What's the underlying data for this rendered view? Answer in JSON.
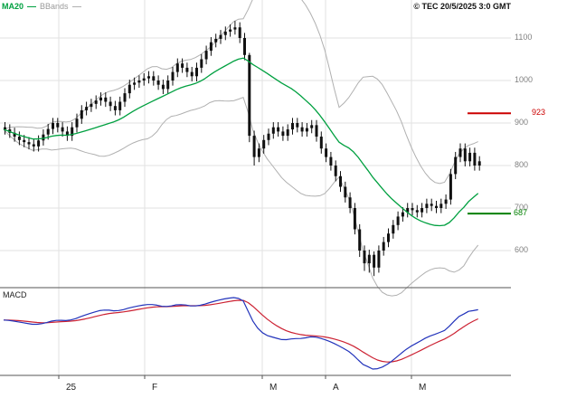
{
  "header": {
    "legend": [
      {
        "label": "MA20",
        "color": "#00a040"
      },
      {
        "label": "BBands",
        "color": "#b0b0b0"
      }
    ],
    "copyright": "© TEC 20/5/2025 3:0 GMT"
  },
  "price_axis": {
    "ticks": [
      1100,
      1000,
      900,
      800,
      700,
      600
    ],
    "levels": [
      {
        "value": 923,
        "color": "#cc0000",
        "type": "resistance"
      },
      {
        "value": 687,
        "color": "#008000",
        "type": "support"
      }
    ]
  },
  "time_axis": {
    "labels": [
      "25",
      "F",
      "M",
      "A",
      "M"
    ]
  },
  "macd": {
    "label": "MACD"
  },
  "colors": {
    "candle": "#111111",
    "ma20": "#00a040",
    "bbands": "#b0b0b0",
    "resistance": "#cc0000",
    "support": "#008000",
    "macd_line": "#2233bb",
    "macd_signal": "#cc2233",
    "grid": "#e2e2e2",
    "axis": "#555555"
  },
  "chart_data": {
    "type": "candlestick",
    "title": "Price chart with MA20, Bollinger Bands and MACD",
    "panels": [
      {
        "name": "price",
        "overlays": [
          "MA20",
          "BBands(20,2)"
        ],
        "y_ticks": [
          1100,
          1000,
          900,
          800,
          700,
          600
        ],
        "ylim": [
          520,
          1190
        ],
        "levels": [
          {
            "value": 923,
            "type": "resistance"
          },
          {
            "value": 687,
            "type": "support"
          }
        ]
      },
      {
        "name": "macd",
        "series": [
          "MACD(12,26)",
          "Signal(9)"
        ]
      }
    ],
    "x_axis": {
      "labels": [
        "25",
        "F",
        "M",
        "A",
        "M"
      ]
    },
    "candles_ohlc": [
      [
        890,
        902,
        873,
        885
      ],
      [
        885,
        897,
        865,
        877
      ],
      [
        877,
        889,
        856,
        868
      ],
      [
        868,
        880,
        848,
        860
      ],
      [
        860,
        872,
        843,
        855
      ],
      [
        855,
        867,
        838,
        850
      ],
      [
        850,
        862,
        833,
        845
      ],
      [
        845,
        871,
        833,
        859
      ],
      [
        859,
        885,
        847,
        873
      ],
      [
        873,
        898,
        861,
        886
      ],
      [
        886,
        912,
        874,
        900
      ],
      [
        900,
        912,
        878,
        890
      ],
      [
        890,
        902,
        868,
        880
      ],
      [
        880,
        892,
        858,
        870
      ],
      [
        870,
        902,
        858,
        890
      ],
      [
        890,
        922,
        878,
        910
      ],
      [
        910,
        942,
        898,
        930
      ],
      [
        930,
        950,
        918,
        938
      ],
      [
        938,
        957,
        926,
        945
      ],
      [
        945,
        965,
        933,
        953
      ],
      [
        953,
        972,
        941,
        960
      ],
      [
        960,
        972,
        938,
        950
      ],
      [
        950,
        962,
        928,
        940
      ],
      [
        940,
        952,
        918,
        930
      ],
      [
        930,
        962,
        918,
        950
      ],
      [
        950,
        982,
        938,
        970
      ],
      [
        970,
        1002,
        958,
        990
      ],
      [
        990,
        1007,
        978,
        995
      ],
      [
        995,
        1012,
        983,
        1000
      ],
      [
        1000,
        1017,
        988,
        1005
      ],
      [
        1005,
        1022,
        993,
        1010
      ],
      [
        1010,
        1022,
        988,
        1000
      ],
      [
        1000,
        1012,
        978,
        990
      ],
      [
        990,
        1002,
        968,
        980
      ],
      [
        980,
        1012,
        968,
        1000
      ],
      [
        1000,
        1032,
        988,
        1020
      ],
      [
        1020,
        1052,
        1008,
        1040
      ],
      [
        1040,
        1052,
        1018,
        1030
      ],
      [
        1030,
        1042,
        1008,
        1020
      ],
      [
        1020,
        1032,
        998,
        1010
      ],
      [
        1010,
        1042,
        998,
        1030
      ],
      [
        1030,
        1062,
        1018,
        1050
      ],
      [
        1050,
        1082,
        1038,
        1070
      ],
      [
        1070,
        1102,
        1058,
        1090
      ],
      [
        1090,
        1110,
        1078,
        1098
      ],
      [
        1098,
        1119,
        1086,
        1107
      ],
      [
        1107,
        1127,
        1095,
        1115
      ],
      [
        1115,
        1132,
        1103,
        1120
      ],
      [
        1120,
        1140,
        1108,
        1125
      ],
      [
        1125,
        1137,
        1088,
        1100
      ],
      [
        1100,
        1112,
        1048,
        1060
      ],
      [
        1060,
        1065,
        855,
        870
      ],
      [
        870,
        882,
        800,
        820
      ],
      [
        820,
        852,
        808,
        840
      ],
      [
        840,
        872,
        828,
        860
      ],
      [
        860,
        887,
        848,
        875
      ],
      [
        875,
        902,
        863,
        890
      ],
      [
        890,
        902,
        868,
        880
      ],
      [
        880,
        892,
        858,
        870
      ],
      [
        870,
        897,
        858,
        885
      ],
      [
        885,
        912,
        873,
        900
      ],
      [
        900,
        912,
        878,
        890
      ],
      [
        890,
        902,
        868,
        880
      ],
      [
        880,
        900,
        868,
        888
      ],
      [
        888,
        907,
        876,
        895
      ],
      [
        895,
        907,
        856,
        868
      ],
      [
        868,
        880,
        828,
        840
      ],
      [
        840,
        852,
        808,
        820
      ],
      [
        820,
        832,
        788,
        800
      ],
      [
        800,
        812,
        763,
        775
      ],
      [
        775,
        787,
        738,
        750
      ],
      [
        750,
        762,
        713,
        725
      ],
      [
        725,
        737,
        688,
        700
      ],
      [
        700,
        712,
        638,
        650
      ],
      [
        650,
        662,
        585,
        600
      ],
      [
        600,
        612,
        552,
        570
      ],
      [
        570,
        602,
        548,
        590
      ],
      [
        590,
        598,
        540,
        560
      ],
      [
        560,
        612,
        548,
        600
      ],
      [
        600,
        632,
        588,
        620
      ],
      [
        620,
        652,
        608,
        640
      ],
      [
        640,
        672,
        628,
        660
      ],
      [
        660,
        692,
        648,
        680
      ],
      [
        680,
        702,
        668,
        690
      ],
      [
        690,
        712,
        678,
        700
      ],
      [
        700,
        712,
        683,
        695
      ],
      [
        695,
        707,
        678,
        690
      ],
      [
        690,
        712,
        678,
        700
      ],
      [
        700,
        722,
        688,
        710
      ],
      [
        710,
        722,
        693,
        705
      ],
      [
        705,
        717,
        688,
        700
      ],
      [
        700,
        722,
        688,
        710
      ],
      [
        710,
        732,
        698,
        720
      ],
      [
        720,
        792,
        708,
        780
      ],
      [
        780,
        832,
        768,
        820
      ],
      [
        820,
        852,
        808,
        840
      ],
      [
        840,
        852,
        798,
        810
      ],
      [
        810,
        842,
        798,
        830
      ],
      [
        830,
        842,
        788,
        800
      ],
      [
        800,
        822,
        788,
        810
      ]
    ]
  }
}
